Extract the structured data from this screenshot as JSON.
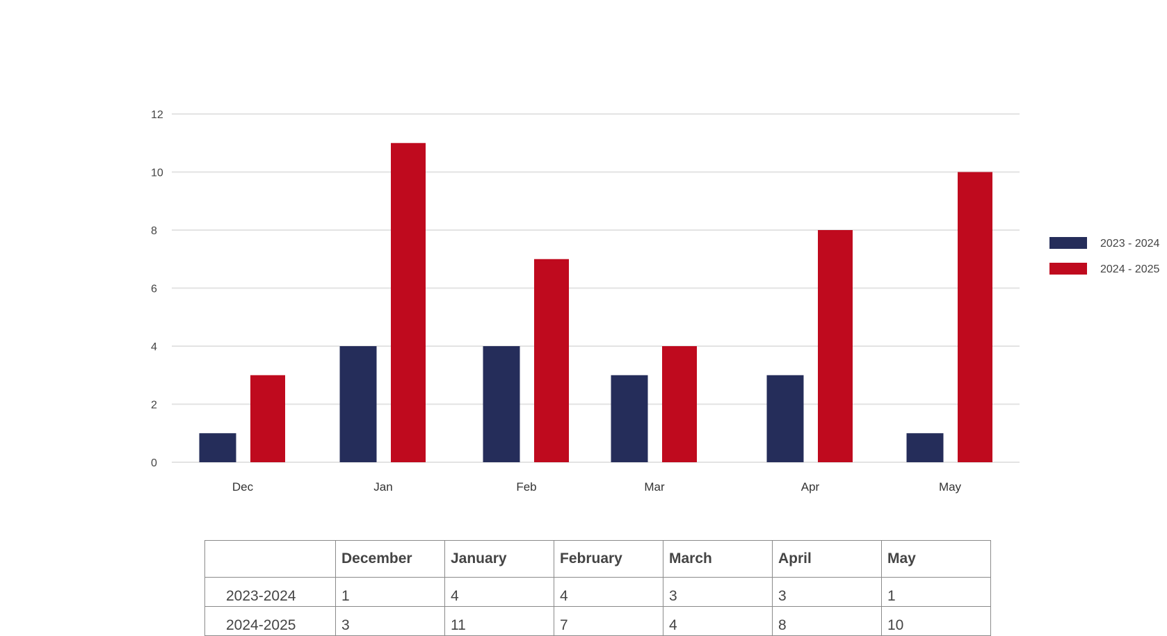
{
  "chart_data": {
    "type": "bar",
    "categories": [
      "Dec",
      "Jan",
      "Feb",
      "Mar",
      "Apr",
      "May"
    ],
    "series": [
      {
        "name": "2023 - 2024",
        "color": "#252d5a",
        "values": [
          1,
          4,
          4,
          3,
          3,
          1
        ]
      },
      {
        "name": "2024 - 2025",
        "color": "#bf0a1e",
        "values": [
          3,
          11,
          7,
          4,
          8,
          10
        ]
      }
    ],
    "ylim": [
      0,
      12
    ],
    "yticks": [
      "0",
      "2",
      "4",
      "6",
      "8",
      "10",
      "12"
    ],
    "grid": true,
    "legend_position": "right"
  },
  "table": {
    "headers": [
      "",
      "December",
      "January",
      "February",
      "March",
      "April",
      "May"
    ],
    "rows": [
      {
        "label": "2023-2024",
        "values": [
          "1",
          "4",
          "4",
          "3",
          "3",
          "1"
        ]
      },
      {
        "label": "2024-2025",
        "values": [
          "3",
          "11",
          "7",
          "4",
          "8",
          "10"
        ]
      }
    ]
  }
}
